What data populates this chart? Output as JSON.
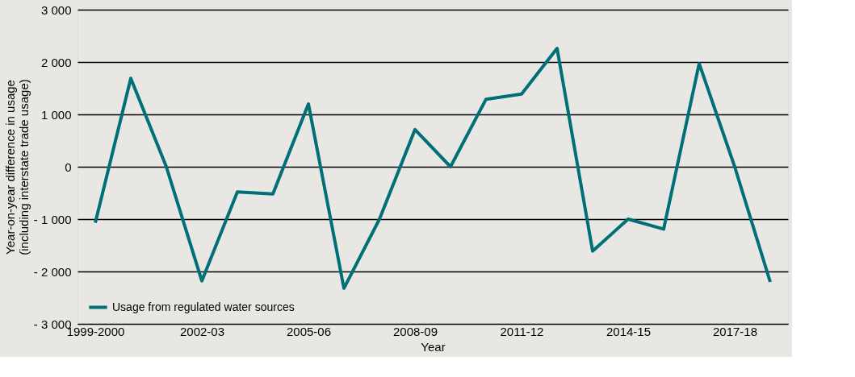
{
  "chart_data": {
    "type": "line",
    "xlabel": "Year",
    "ylabel": "Year-on-year difference in usage\n(including interstate trade usage)",
    "categories": [
      "1999-2000",
      null,
      null,
      "2002-03",
      null,
      null,
      "2005-06",
      null,
      null,
      "2008-09",
      null,
      null,
      "2011-12",
      null,
      null,
      "2014-15",
      null,
      null,
      "2017-18",
      null
    ],
    "series": [
      {
        "name": "Usage from regulated water sources",
        "color": "#007078",
        "values": [
          -1070,
          1690,
          0,
          -2180,
          -480,
          -520,
          1200,
          -2320,
          -1000,
          710,
          0,
          1290,
          1390,
          2260,
          -1610,
          -1000,
          -1190,
          1970,
          0,
          -2200
        ]
      }
    ],
    "ylim": [
      -3000,
      3000
    ],
    "yticks": [
      {
        "value": -3000,
        "label": "- 3 000"
      },
      {
        "value": -2000,
        "label": "- 2 000"
      },
      {
        "value": -1000,
        "label": "- 1 000"
      },
      {
        "value": 0,
        "label": "0"
      },
      {
        "value": 1000,
        "label": "1 000"
      },
      {
        "value": 2000,
        "label": "2 000"
      },
      {
        "value": 3000,
        "label": "3 000"
      }
    ],
    "grid": "y",
    "legend": "bottom left",
    "marker": "none",
    "line_style": "solid"
  }
}
